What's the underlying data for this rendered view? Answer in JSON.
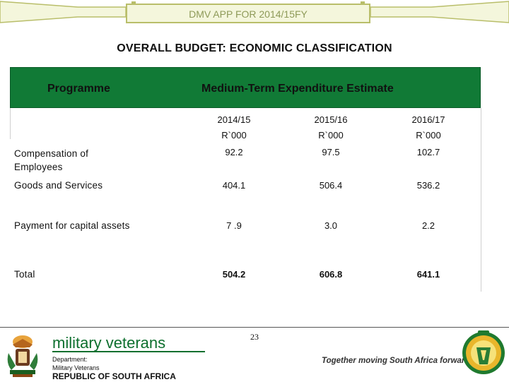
{
  "header": {
    "banner_title": "DMV APP FOR 2014/15FY"
  },
  "slide": {
    "title": "OVERALL BUDGET:  ECONOMIC CLASSIFICATION"
  },
  "table": {
    "programme_header": "Programme",
    "mtee_header": "Medium-Term Expenditure Estimate",
    "years": [
      "2014/15",
      "2015/16",
      "2016/17"
    ],
    "units": [
      "R`000",
      "R`000",
      "R`000"
    ],
    "rows": [
      {
        "label": "Compensation of Employees",
        "values": [
          "92.2",
          "97.5",
          "102.7"
        ]
      },
      {
        "label": "Goods and Services",
        "values": [
          "404.1",
          "506.4",
          "536.2"
        ]
      },
      {
        "label": "Payment for capital assets",
        "values": [
          "7 .9",
          "3.0",
          "2.2"
        ]
      },
      {
        "label": "Total",
        "values": [
          "504.2",
          "606.8",
          "641.1"
        ]
      }
    ]
  },
  "footer": {
    "brand": "military veterans",
    "dept_line1": "Department:",
    "dept_line2": "Military Veterans",
    "country": "REPUBLIC OF SOUTH AFRICA",
    "page_number": "23",
    "tagline": "Together moving South Africa forward"
  },
  "colors": {
    "table_header": "#117a36",
    "brand_green": "#0d6f2e",
    "banner_border": "#b9be6a"
  },
  "icons": {
    "left_emblem": "coat-of-arms-icon",
    "right_emblem": "military-veterans-emblem-icon"
  }
}
